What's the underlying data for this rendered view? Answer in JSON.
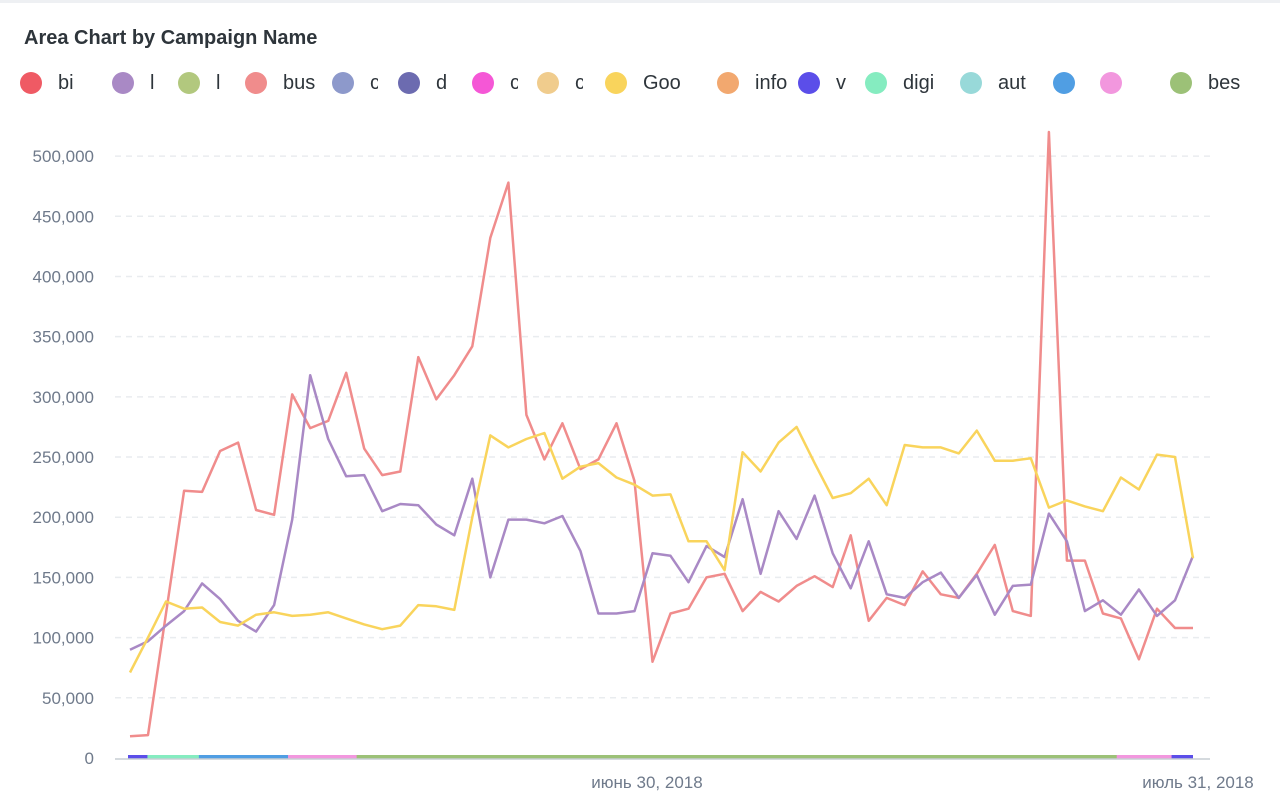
{
  "chart_data": {
    "type": "line",
    "title": "Area Chart by Campaign Name",
    "legend": {
      "placement": "top",
      "items": [
        {
          "label": "bi",
          "color": "#ef5a64"
        },
        {
          "label": "l",
          "color": "#a989c5"
        },
        {
          "label": "l",
          "color": "#b2c87e"
        },
        {
          "label": "bus",
          "color": "#f08c8c"
        },
        {
          "label": "c",
          "color": "#8d99cb"
        },
        {
          "label": "d",
          "color": "#6c6bb0"
        },
        {
          "label": "c",
          "color": "#f557d6"
        },
        {
          "label": "c",
          "color": "#f0cc8d"
        },
        {
          "label": "Goo",
          "color": "#f9d45c"
        },
        {
          "label": "info",
          "color": "#f2a86f"
        },
        {
          "label": "v",
          "color": "#5b4ee9"
        },
        {
          "label": "digi",
          "color": "#85ecc0"
        },
        {
          "label": "aut",
          "color": "#98d9d9"
        },
        {
          "label": "",
          "color": "#509ee3"
        },
        {
          "label": "",
          "color": "#f297de"
        },
        {
          "label": "bes",
          "color": "#9cc177"
        }
      ]
    },
    "y_ticks": [
      "0",
      "50,000",
      "100,000",
      "150,000",
      "200,000",
      "250,000",
      "300,000",
      "350,000",
      "400,000",
      "450,000",
      "500,000"
    ],
    "ylim": [
      0,
      520000
    ],
    "x_ticks": [
      "июнь 30, 2018",
      "июль 31, 2018"
    ],
    "grid": true,
    "series": [
      {
        "label_ref": "bus",
        "color": "#f08c8c",
        "values": [
          18000,
          19000,
          120000,
          222000,
          221000,
          255000,
          262000,
          206000,
          202000,
          302000,
          274000,
          280000,
          320000,
          257000,
          235000,
          238000,
          333000,
          298000,
          318000,
          342000,
          432000,
          478000,
          285000,
          248000,
          278000,
          240000,
          248000,
          278000,
          230000,
          80000,
          120000,
          124000,
          150000,
          153000,
          122000,
          138000,
          130000,
          143000,
          151000,
          142000,
          185000,
          114000,
          133000,
          127000,
          155000,
          136000,
          133000,
          153000,
          177000,
          122000,
          118000,
          520000,
          164000,
          164000,
          120000,
          116000,
          82000,
          124000,
          108000,
          108000
        ]
      },
      {
        "label_ref": "l",
        "color": "#a989c5",
        "values": [
          90000,
          97000,
          110000,
          122000,
          145000,
          132000,
          114000,
          105000,
          127000,
          198000,
          318000,
          265000,
          234000,
          235000,
          205000,
          211000,
          210000,
          194000,
          185000,
          232000,
          150000,
          198000,
          198000,
          195000,
          201000,
          172000,
          120000,
          120000,
          122000,
          170000,
          168000,
          146000,
          176000,
          167000,
          215000,
          153000,
          205000,
          182000,
          218000,
          170000,
          141000,
          180000,
          136000,
          133000,
          146000,
          154000,
          133000,
          152000,
          119000,
          143000,
          144000,
          203000,
          180000,
          122000,
          131000,
          119000,
          140000,
          118000,
          131000,
          168000
        ]
      },
      {
        "label_ref": "Goo",
        "color": "#f9d45c",
        "values": [
          71000,
          100000,
          130000,
          124000,
          125000,
          113000,
          110000,
          119000,
          121000,
          118000,
          119000,
          121000,
          116000,
          111000,
          107000,
          110000,
          127000,
          126000,
          123000,
          200000,
          268000,
          258000,
          265000,
          270000,
          232000,
          242000,
          245000,
          233000,
          227000,
          218000,
          219000,
          180000,
          180000,
          156000,
          254000,
          238000,
          262000,
          275000,
          245000,
          216000,
          220000,
          232000,
          210000,
          260000,
          258000,
          258000,
          253000,
          272000,
          247000,
          247000,
          249000,
          208000,
          214000,
          209000,
          205000,
          233000,
          223000,
          252000,
          250000,
          166000
        ]
      }
    ],
    "baseline_bands": [
      {
        "start": 0.0,
        "end": 1.7,
        "color": "#5b4ee9"
      },
      {
        "start": 1.7,
        "end": 6.2,
        "color": "#85ecc0"
      },
      {
        "start": 6.2,
        "end": 14.0,
        "color": "#509ee3"
      },
      {
        "start": 14.0,
        "end": 20.0,
        "color": "#f297de"
      },
      {
        "start": 20.0,
        "end": 86.5,
        "color": "#9cc177"
      },
      {
        "start": 86.5,
        "end": 91.3,
        "color": "#f297de"
      },
      {
        "start": 91.3,
        "end": 93.0,
        "color": "#5b4ee9"
      }
    ]
  }
}
